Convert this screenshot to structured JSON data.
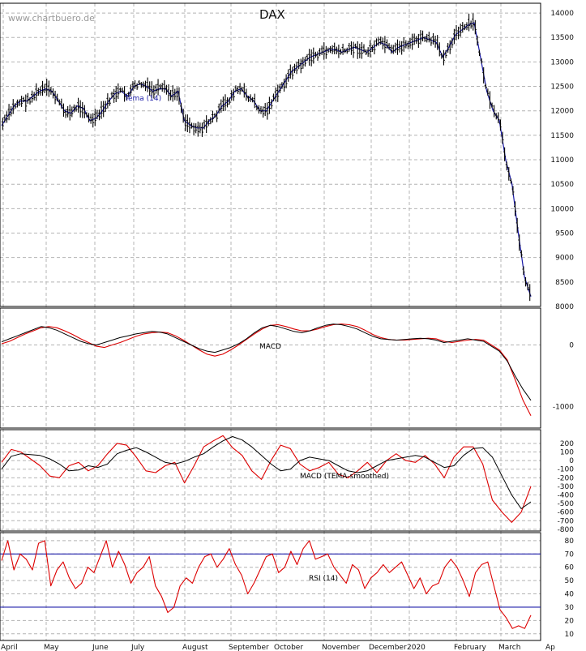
{
  "watermark": "www.chartbuero.de",
  "title": "DAX",
  "months": [
    "April",
    "May",
    "June",
    "July",
    "August",
    "September",
    "October",
    "November",
    "December",
    "2020",
    "February",
    "March",
    "Ap"
  ],
  "colors": {
    "price": "#000000",
    "tema": "#1a1aa8",
    "macd": "#000000",
    "signal": "#dd0000",
    "rsi": "#dd0000",
    "rsi_levels": "#1a1aa8",
    "grid": "#b4b4b4"
  },
  "chart_data": [
    {
      "type": "line",
      "title": "DAX",
      "series": [
        {
          "name": "Tema (14)",
          "y": [
            11700,
            11900,
            12100,
            12200,
            12200,
            12300,
            12400,
            12450,
            12400,
            12200,
            12000,
            11950,
            12100,
            12050,
            11800,
            11850,
            12000,
            12200,
            12350,
            12400,
            12300,
            12500,
            12550,
            12500,
            12400,
            12450,
            12450,
            12300,
            12400,
            11800,
            11700,
            11650,
            11650,
            11800,
            11900,
            12100,
            12200,
            12400,
            12450,
            12300,
            12200,
            12000,
            12000,
            12200,
            12400,
            12600,
            12800,
            12900,
            13000,
            13100,
            13150,
            13200,
            13250,
            13250,
            13200,
            13250,
            13300,
            13250,
            13200,
            13300,
            13400,
            13350,
            13200,
            13300,
            13350,
            13400,
            13450,
            13500,
            13450,
            13400,
            13100,
            13300,
            13550,
            13650,
            13750,
            13800,
            13100,
            12400,
            12000,
            11800,
            11000,
            10500,
            9500,
            8600,
            8200
          ]
        }
      ],
      "ylim": [
        8000,
        14200
      ],
      "yticks": [
        8000,
        8500,
        9000,
        9500,
        10000,
        10500,
        11000,
        11500,
        12000,
        12500,
        13000,
        13500,
        14000
      ]
    },
    {
      "type": "line",
      "series": [
        {
          "name": "MACD",
          "y": [
            50,
            100,
            150,
            200,
            250,
            300,
            280,
            240,
            180,
            120,
            60,
            20,
            0,
            40,
            80,
            120,
            150,
            180,
            200,
            220,
            210,
            180,
            120,
            60,
            0,
            -60,
            -100,
            -120,
            -80,
            -40,
            20,
            100,
            200,
            280,
            320,
            300,
            260,
            220,
            200,
            230,
            280,
            320,
            340,
            330,
            300,
            260,
            200,
            140,
            100,
            90,
            80,
            90,
            100,
            110,
            100,
            80,
            40,
            60,
            80,
            100,
            80,
            60,
            -20,
            -100,
            -260,
            -500,
            -720,
            -900
          ]
        },
        {
          "name": "",
          "y": [
            20,
            60,
            120,
            180,
            230,
            280,
            300,
            280,
            230,
            170,
            100,
            40,
            -20,
            -40,
            0,
            40,
            90,
            140,
            180,
            200,
            210,
            200,
            150,
            80,
            0,
            -80,
            -150,
            -180,
            -150,
            -80,
            0,
            90,
            180,
            260,
            320,
            330,
            300,
            260,
            230,
            230,
            260,
            300,
            330,
            340,
            330,
            300,
            240,
            170,
            120,
            90,
            80,
            80,
            90,
            100,
            110,
            100,
            60,
            40,
            60,
            80,
            90,
            80,
            0,
            -80,
            -240,
            -560,
            -900,
            -1150
          ]
        }
      ],
      "ylim": [
        -1350,
        600
      ],
      "yticks": [
        -1000,
        0
      ]
    },
    {
      "type": "line",
      "series": [
        {
          "name": "MACD (TEMA-smoothed)",
          "y": [
            -100,
            50,
            80,
            70,
            60,
            20,
            -40,
            -120,
            -110,
            -60,
            -80,
            -40,
            80,
            120,
            150,
            100,
            40,
            -20,
            -40,
            -10,
            40,
            80,
            160,
            230,
            280,
            240,
            160,
            60,
            -40,
            -120,
            -100,
            0,
            40,
            20,
            0,
            -60,
            -120,
            -140,
            -120,
            -60,
            0,
            20,
            40,
            60,
            40,
            -20,
            -80,
            -60,
            60,
            140,
            150,
            40,
            -180,
            -400,
            -560,
            -480
          ]
        },
        {
          "name": "",
          "y": [
            -20,
            130,
            100,
            20,
            -60,
            -180,
            -200,
            -60,
            -20,
            -120,
            -60,
            80,
            200,
            180,
            40,
            -120,
            -140,
            -60,
            -20,
            -260,
            -60,
            160,
            230,
            290,
            150,
            60,
            -120,
            -220,
            0,
            180,
            140,
            -40,
            -120,
            -80,
            -20,
            -160,
            -200,
            -120,
            -20,
            -140,
            0,
            80,
            0,
            -20,
            60,
            -40,
            -200,
            40,
            160,
            160,
            -40,
            -460,
            -600,
            -720,
            -600,
            -300
          ]
        }
      ],
      "ylim": [
        -820,
        360
      ],
      "yticks": [
        -800,
        -700,
        -600,
        -500,
        -400,
        -300,
        -200,
        -100,
        0,
        100,
        200
      ]
    },
    {
      "type": "line",
      "series": [
        {
          "name": "RSI (14)",
          "y": [
            65,
            80,
            58,
            70,
            66,
            58,
            78,
            80,
            46,
            58,
            64,
            52,
            44,
            48,
            60,
            56,
            68,
            80,
            60,
            72,
            62,
            48,
            56,
            60,
            68,
            46,
            38,
            26,
            30,
            46,
            52,
            48,
            60,
            68,
            70,
            60,
            66,
            74,
            62,
            54,
            40,
            48,
            58,
            68,
            70,
            56,
            60,
            72,
            62,
            74,
            80,
            66,
            68,
            70,
            60,
            54,
            48,
            62,
            58,
            44,
            52,
            56,
            62,
            56,
            60,
            64,
            54,
            44,
            52,
            40,
            46,
            48,
            60,
            66,
            60,
            50,
            38,
            56,
            62,
            64,
            46,
            28,
            22,
            14,
            16,
            14,
            24
          ]
        }
      ],
      "hlines": [
        30,
        70
      ],
      "ylim": [
        5,
        86
      ],
      "yticks": [
        10,
        20,
        30,
        40,
        50,
        60,
        70,
        80
      ]
    }
  ]
}
